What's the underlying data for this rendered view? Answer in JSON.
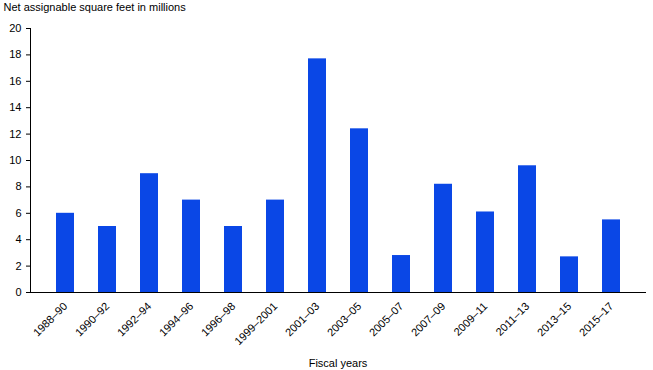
{
  "chart_data": {
    "type": "bar",
    "ylabel": "Net assignable square feet in millions",
    "xlabel": "Fiscal years",
    "categories": [
      "1988–90",
      "1990–92",
      "1992–94",
      "1994–96",
      "1996–98",
      "1999–2001",
      "2001–03",
      "2003–05",
      "2005–07",
      "2007–09",
      "2009–11",
      "2011–13",
      "2013–15",
      "2015–17"
    ],
    "values": [
      6,
      5,
      9,
      7,
      5,
      7,
      17.7,
      12.4,
      2.8,
      8.2,
      6.1,
      9.6,
      2.7,
      5.5
    ],
    "color": "#0a47e6",
    "ylim": [
      0,
      20
    ],
    "yticks": [
      0,
      2,
      4,
      6,
      8,
      10,
      12,
      14,
      16,
      18,
      20
    ],
    "grid": false
  }
}
